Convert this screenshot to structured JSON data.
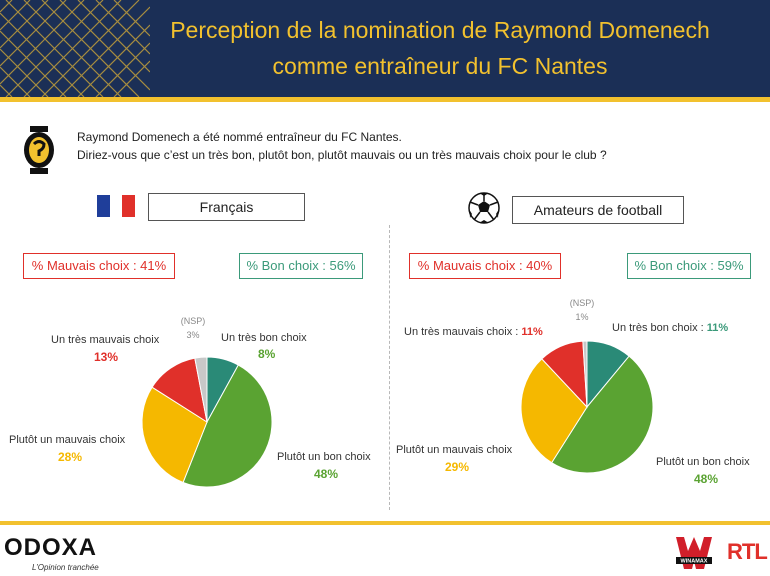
{
  "header": {
    "title_line1": "Perception de la nomination de Raymond Domenech",
    "title_line2": "comme entraîneur du FC Nantes"
  },
  "question": {
    "line1": "Raymond Domenech a été nommé entraîneur du FC Nantes.",
    "line2": "Diriez-vous que c’est un très bon, plutôt bon, plutôt mauvais ou un très mauvais choix pour le club ?"
  },
  "colors": {
    "navy": "#1b2f56",
    "gold": "#f2c12e",
    "tres_bon": "#2a8a77",
    "plutot_bon": "#5aa332",
    "plutot_mauvais": "#f5b800",
    "tres_mauvais": "#e0302a",
    "nsp": "#c8c8c8"
  },
  "chart_data": [
    {
      "type": "pie",
      "group": "Français",
      "kpi_bad": "% Mauvais choix : 41%",
      "kpi_good": "% Bon choix : 56%",
      "slices": [
        {
          "label": "Un très bon choix",
          "value": 8,
          "display": "8%"
        },
        {
          "label": "Plutôt un bon choix",
          "value": 48,
          "display": "48%"
        },
        {
          "label": "Plutôt un mauvais choix",
          "value": 28,
          "display": "28%"
        },
        {
          "label": "Un très mauvais choix",
          "value": 13,
          "display": "13%"
        },
        {
          "label": "(NSP)",
          "value": 3,
          "display": "3%"
        }
      ]
    },
    {
      "type": "pie",
      "group": "Amateurs de football",
      "kpi_bad": "% Mauvais choix : 40%",
      "kpi_good": "% Bon choix : 59%",
      "slices": [
        {
          "label": "Un très bon choix :",
          "value": 11,
          "display": "11%"
        },
        {
          "label": "Plutôt un bon choix",
          "value": 48,
          "display": "48%"
        },
        {
          "label": "Plutôt un mauvais choix",
          "value": 29,
          "display": "29%"
        },
        {
          "label": "Un très mauvais choix :",
          "value": 11,
          "display": "11%"
        },
        {
          "label": "(NSP)",
          "value": 1,
          "display": "1%"
        }
      ]
    }
  ],
  "footer": {
    "logo": "ODOXA",
    "tagline": "L’Opinion tranchée",
    "partner1": "WINAMAX",
    "partner2": "RTL"
  }
}
